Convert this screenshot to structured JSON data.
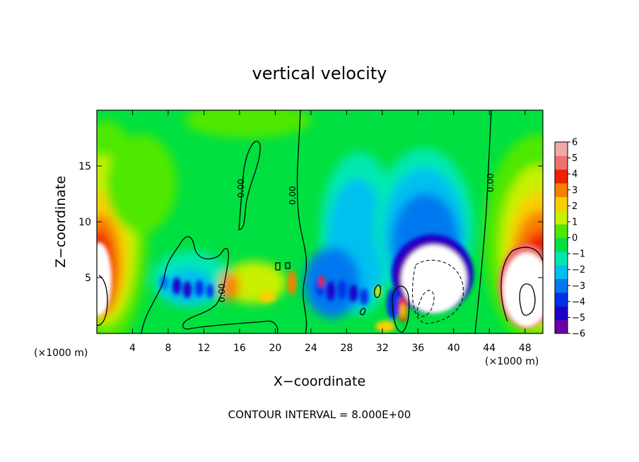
{
  "chart_data": {
    "type": "heatmap",
    "title": "vertical velocity",
    "xlabel": "X−coordinate",
    "ylabel": "Z−coordinate",
    "x_unit_left": "(×1000 m)",
    "x_unit_right": "(×1000 m)",
    "xlim": [
      0,
      50
    ],
    "ylim": [
      0,
      20
    ],
    "x_ticks": [
      4,
      8,
      12,
      16,
      20,
      24,
      28,
      32,
      36,
      40,
      44,
      48
    ],
    "y_ticks": [
      5,
      10,
      15
    ],
    "colorbar": {
      "ticks": [
        6,
        5,
        4,
        3,
        2,
        1,
        0,
        -1,
        -2,
        -3,
        -4,
        -5,
        -6
      ],
      "tick_labels": [
        "6",
        "5",
        "4",
        "3",
        "2",
        "1",
        "0",
        "−1",
        "−2",
        "−3",
        "−4",
        "−5",
        "−6"
      ],
      "range": [
        -6,
        6
      ],
      "colors": [
        "#6a00a8",
        "#1c00c8",
        "#0030e8",
        "#0078f0",
        "#00c0f0",
        "#00e8b0",
        "#00e040",
        "#50e800",
        "#c8f000",
        "#f8d000",
        "#f88000",
        "#f02000",
        "#f07070",
        "#f0a8a8"
      ]
    },
    "contour_labels": [
      "0.00",
      "0.00",
      "0.00",
      "0.00"
    ],
    "features": [
      {
        "name": "updraft-left-edge",
        "x": 1.5,
        "z": 5,
        "peak": 6
      },
      {
        "name": "updraft-right-edge",
        "x": 48.5,
        "z": 5,
        "peak": 6
      },
      {
        "name": "strong-downdraft-core",
        "x": 37,
        "z": 5,
        "peak": -6
      },
      {
        "name": "downdraft-band",
        "x": 31,
        "z": 7,
        "peak": -4
      },
      {
        "name": "updraft-column",
        "x": 34,
        "z": 2.5,
        "peak": 5
      },
      {
        "name": "turbulent-cells-left",
        "x": 10.5,
        "z": 4,
        "peak": -4
      }
    ],
    "grid": false,
    "legend": "right"
  },
  "footer": {
    "contour_interval": "CONTOUR INTERVAL = 8.000E+00"
  }
}
